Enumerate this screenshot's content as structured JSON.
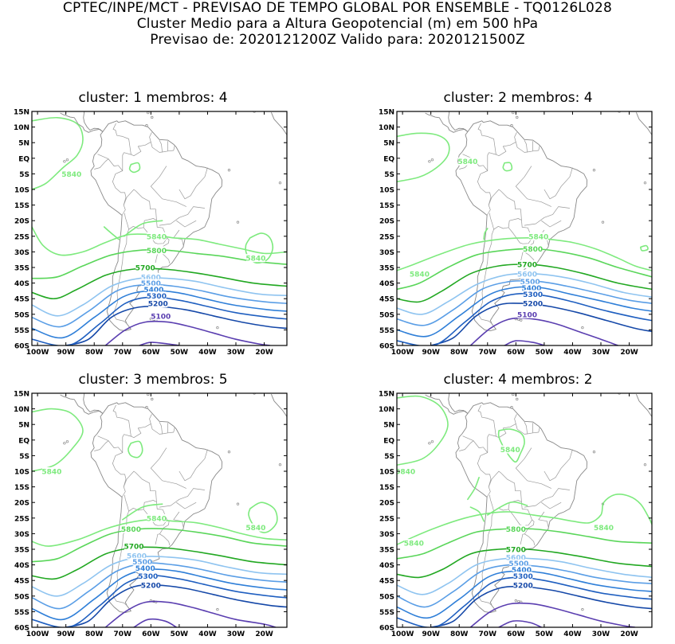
{
  "header": {
    "line1": "CPTEC/INPE/MCT - PREVISAO DE TEMPO GLOBAL POR ENSEMBLE - TQ0126L028",
    "line2": "Cluster Medio para a Altura Geopotencial (m) em 500 hPa",
    "line3": "Previsao de: 2020121200Z    Valido para: 2020121500Z"
  },
  "axes": {
    "lat_ticks": [
      "15N",
      "10N",
      "5N",
      "EQ",
      "5S",
      "10S",
      "15S",
      "20S",
      "25S",
      "30S",
      "35S",
      "40S",
      "45S",
      "50S",
      "55S",
      "60S"
    ],
    "lon_ticks": [
      "100W",
      "90W",
      "80W",
      "70W",
      "60W",
      "50W",
      "40W",
      "30W",
      "20W"
    ]
  },
  "colors": {
    "5840": "#7eea7e",
    "5800": "#5ad65a",
    "5700": "#22a822",
    "5600": "#8fc4f0",
    "5500": "#5a9ee6",
    "5400": "#2f7fd8",
    "5300": "#1f5fc0",
    "5200": "#1548a8",
    "5100": "#5a3eb0",
    "5000": "#5a3eb0"
  },
  "panels": [
    {
      "title": "cluster: 1   membros: 4",
      "labels": [
        {
          "text": "5840",
          "c": "5840",
          "lat": -5,
          "lon": -88
        },
        {
          "text": "5840",
          "c": "5840",
          "lat": -25,
          "lon": -58
        },
        {
          "text": "5840",
          "c": "5840",
          "lat": -32,
          "lon": -23
        },
        {
          "text": "5800",
          "c": "5800",
          "lat": -29.5,
          "lon": -58
        },
        {
          "text": "5700",
          "c": "5700",
          "lat": -35,
          "lon": -62
        },
        {
          "text": "5600",
          "c": "5600",
          "lat": -38,
          "lon": -60
        },
        {
          "text": "5500",
          "c": "5500",
          "lat": -40,
          "lon": -60
        },
        {
          "text": "5400",
          "c": "5400",
          "lat": -42,
          "lon": -59
        },
        {
          "text": "5300",
          "c": "5300",
          "lat": -44,
          "lon": -58
        },
        {
          "text": "5200",
          "c": "5200",
          "lat": -46.5,
          "lon": -57.5
        },
        {
          "text": "5100",
          "c": "5100",
          "lat": -50.5,
          "lon": -56.5
        }
      ]
    },
    {
      "title": "cluster: 2   membros: 4",
      "labels": [
        {
          "text": "5840",
          "c": "5840",
          "lat": -1,
          "lon": -77
        },
        {
          "text": "5840",
          "c": "5840",
          "lat": -25,
          "lon": -52
        },
        {
          "text": "5840",
          "c": "5840",
          "lat": -37,
          "lon": -94
        },
        {
          "text": "5800",
          "c": "5800",
          "lat": -29,
          "lon": -54
        },
        {
          "text": "5700",
          "c": "5700",
          "lat": -34,
          "lon": -56
        },
        {
          "text": "5600",
          "c": "5600",
          "lat": -37,
          "lon": -56
        },
        {
          "text": "5500",
          "c": "5500",
          "lat": -39.5,
          "lon": -55
        },
        {
          "text": "5400",
          "c": "5400",
          "lat": -41.5,
          "lon": -54.5
        },
        {
          "text": "5300",
          "c": "5300",
          "lat": -43.5,
          "lon": -54
        },
        {
          "text": "5200",
          "c": "5200",
          "lat": -46.5,
          "lon": -54
        },
        {
          "text": "5100",
          "c": "5100",
          "lat": -50,
          "lon": -56
        }
      ]
    },
    {
      "title": "cluster: 3   membros: 5",
      "labels": [
        {
          "text": "5840",
          "c": "5840",
          "lat": -10,
          "lon": -95
        },
        {
          "text": "5840",
          "c": "5840",
          "lat": -25,
          "lon": -58
        },
        {
          "text": "5840",
          "c": "5840",
          "lat": -28,
          "lon": -23
        },
        {
          "text": "5800",
          "c": "5800",
          "lat": -28.5,
          "lon": -67
        },
        {
          "text": "5700",
          "c": "5700",
          "lat": -34,
          "lon": -66
        },
        {
          "text": "5600",
          "c": "5600",
          "lat": -37,
          "lon": -65
        },
        {
          "text": "5500",
          "c": "5500",
          "lat": -39,
          "lon": -63
        },
        {
          "text": "5400",
          "c": "5400",
          "lat": -41,
          "lon": -62
        },
        {
          "text": "5300",
          "c": "5300",
          "lat": -43.5,
          "lon": -61
        },
        {
          "text": "5200",
          "c": "5200",
          "lat": -46.5,
          "lon": -60
        }
      ]
    },
    {
      "title": "cluster: 4   membros: 2",
      "labels": [
        {
          "text": "5840",
          "c": "5840",
          "lat": -3,
          "lon": -62
        },
        {
          "text": "5840",
          "c": "5840",
          "lat": -10,
          "lon": -99
        },
        {
          "text": "5840",
          "c": "5840",
          "lat": -28,
          "lon": -29
        },
        {
          "text": "5840",
          "c": "5840",
          "lat": -33,
          "lon": -96
        },
        {
          "text": "5800",
          "c": "5800",
          "lat": -28.5,
          "lon": -60
        },
        {
          "text": "5700",
          "c": "5700",
          "lat": -35,
          "lon": -60
        },
        {
          "text": "5600",
          "c": "5600",
          "lat": -37.5,
          "lon": -60
        },
        {
          "text": "5500",
          "c": "5500",
          "lat": -39.5,
          "lon": -59
        },
        {
          "text": "5400",
          "c": "5400",
          "lat": -41.5,
          "lon": -58
        },
        {
          "text": "5300",
          "c": "5300",
          "lat": -43.5,
          "lon": -57.5
        },
        {
          "text": "5200",
          "c": "5200",
          "lat": -46.5,
          "lon": -57.5
        }
      ]
    }
  ]
}
